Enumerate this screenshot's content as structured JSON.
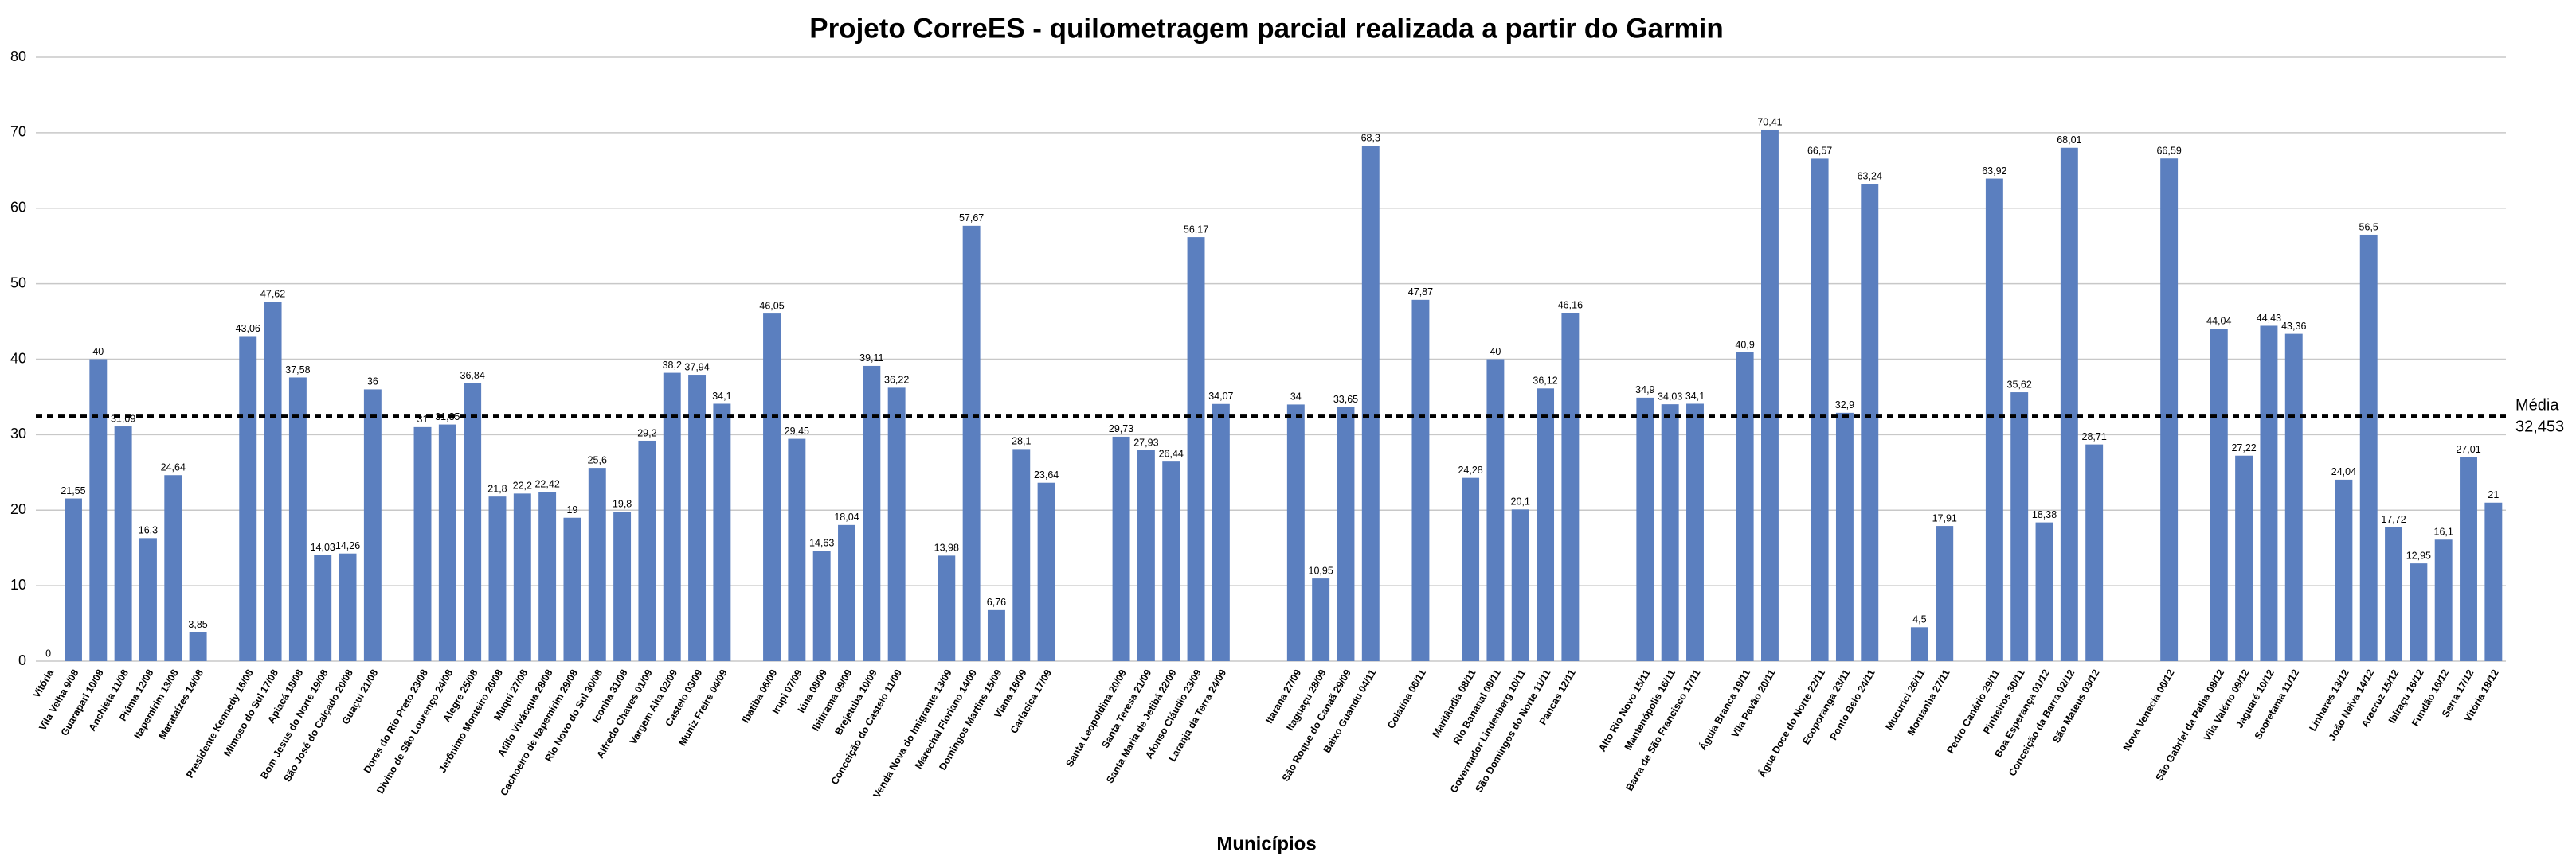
{
  "chart_data": {
    "type": "bar",
    "title": "Projeto CorreES - quilometragem parcial realizada a partir do Garmin",
    "x_label": "Municípios",
    "color": "#5b7fbf",
    "ylim": [
      0,
      80
    ],
    "yticks": [
      0,
      10,
      20,
      30,
      40,
      50,
      60,
      70,
      80
    ],
    "grid": true,
    "mean": {
      "name": "Média",
      "value": 32.453,
      "label": "32,453",
      "color": "#000000"
    },
    "categories": [
      "Vitória",
      "Vila Velha 9/08",
      "Guarapari 10/08",
      "Anchieta 11/08",
      "Piúma 12/08",
      "Itapemirim 13/08",
      "Marataízes 14/08",
      null,
      "Presidente Kennedy 16/08",
      "Mimoso do Sul 17/08",
      "Apiacá 18/08",
      "Bom Jesus do Norte 19/08",
      "São José do Calçado 20/08",
      "Guaçuí 21/08",
      null,
      "Dores do Rio Preto 23/08",
      "Divino de São Lourenço 24/08",
      "Alegre 25/08",
      "Jerônimo Monteiro 26/08",
      "Muqui 27/08",
      "Atílio Vivácqua 28/08",
      "Cachoeiro de Itapemirim 29/08",
      "Rio Novo do Sul 30/08",
      "Iconha 31/08",
      "Alfredo Chaves 01/09",
      "Vargem Alta 02/09",
      "Castelo 03/09",
      "Muniz Freire 04/09",
      null,
      "Ibatiba 06/09",
      "Irupi 07/09",
      "Iúna 08/09",
      "Ibitirama 09/09",
      "Brejetuba 10/09",
      "Conceição do Castelo 11/09",
      null,
      "Venda Nova do Imigrante 13/09",
      "Marechal Floriano 14/09",
      "Domingos Martins 15/09",
      "Viana 16/09",
      "Cariacica 17/09",
      null,
      null,
      "Santa Leopoldina 20/09",
      "Santa Teresa 21/09",
      "Santa Maria de Jetibá 22/09",
      "Afonso Cláudio 23/09",
      "Laranja da Terra 24/09",
      null,
      null,
      "Itarana 27/09",
      "Itaguaçu 28/09",
      "São Roque do Canaã 29/09",
      "Baixo Guandu 04/11",
      null,
      "Colatina 06/11",
      null,
      "Marilândia 08/11",
      "Rio Bananal 09/11",
      "Governador Lindenberg 10/11",
      "São Domingos do Norte 11/11",
      "Pancas 12/11",
      null,
      null,
      "Alto Rio Novo 15/11",
      "Mantenópolis 16/11",
      "Barra de São Francisco 17/11",
      null,
      "Águia Branca 19/11",
      "Vila Pavão 20/11",
      null,
      "Água Doce do Norte 22/11",
      "Ecoporanga 23/11",
      "Ponto Belo 24/11",
      null,
      "Mucurici 26/11",
      "Montanha 27/11",
      null,
      "Pedro Canário 29/11",
      "Pinheiros 30/11",
      "Boa Esperança 01/12",
      "Conceição da Barra 02/12",
      "São Mateus 03/12",
      null,
      null,
      "Nova Venécia 06/12",
      null,
      "São Gabriel da Palha 08/12",
      "Vila Valério 09/12",
      "Jaguaré 10/12",
      "Sooretama 11/12",
      null,
      "Linhares 13/12",
      "João Neiva 14/12",
      "Aracruz 15/12",
      "Ibiraçu 16/12",
      "Fundão 16/12",
      "Serra 17/12",
      "Vitória 18/12"
    ],
    "values": [
      0,
      21.55,
      40,
      31.09,
      16.3,
      24.64,
      3.85,
      null,
      43.06,
      47.62,
      37.58,
      14.03,
      14.26,
      36,
      null,
      31,
      31.35,
      36.84,
      21.8,
      22.2,
      22.42,
      19,
      25.6,
      19.8,
      29.2,
      38.2,
      37.94,
      34.1,
      null,
      46.05,
      29.45,
      14.63,
      18.04,
      39.11,
      36.22,
      null,
      13.98,
      57.67,
      6.76,
      28.1,
      23.64,
      null,
      null,
      29.73,
      27.93,
      26.44,
      56.17,
      34.07,
      null,
      null,
      34,
      10.95,
      33.65,
      68.3,
      null,
      47.87,
      null,
      24.28,
      40,
      20.1,
      36.12,
      46.16,
      null,
      null,
      34.9,
      34.03,
      34.1,
      null,
      40.9,
      70.41,
      null,
      66.57,
      32.9,
      63.24,
      null,
      4.5,
      17.91,
      null,
      63.92,
      35.62,
      18.38,
      68.01,
      28.71,
      null,
      null,
      66.59,
      null,
      44.04,
      27.22,
      44.43,
      43.36,
      null,
      24.04,
      56.5,
      17.72,
      12.95,
      16.1,
      27.01,
      21
    ],
    "value_labels": [
      "0",
      "21,55",
      "40",
      "31,09",
      "16,3",
      "24,64",
      "3,85",
      null,
      "43,06",
      "47,62",
      "37,58",
      "14,03",
      "14,26",
      "36",
      null,
      "31",
      "31,35",
      "36,84",
      "21,8",
      "22,2",
      "22,42",
      "19",
      "25,6",
      "19,8",
      "29,2",
      "38,2",
      "37,94",
      "34,1",
      null,
      "46,05",
      "29,45",
      "14,63",
      "18,04",
      "39,11",
      "36,22",
      null,
      "13,98",
      "57,67",
      "6,76",
      "28,1",
      "23,64",
      null,
      null,
      "29,73",
      "27,93",
      "26,44",
      "56,17",
      "34,07",
      null,
      null,
      "34",
      "10,95",
      "33,65",
      "68,3",
      null,
      "47,87",
      null,
      "24,28",
      "40",
      "20,1",
      "36,12",
      "46,16",
      null,
      null,
      "34,9",
      "34,03",
      "34,1",
      null,
      "40,9",
      "70,41",
      null,
      "66,57",
      "32,9",
      "63,24",
      null,
      "4,5",
      "17,91",
      null,
      "63,92",
      "35,62",
      "18,38",
      "68,01",
      "28,71",
      null,
      null,
      "66,59",
      null,
      "44,04",
      "27,22",
      "44,43",
      "43,36",
      null,
      "24,04",
      "56,5",
      "17,72",
      "12,95",
      "16,1",
      "27,01",
      "21"
    ]
  }
}
